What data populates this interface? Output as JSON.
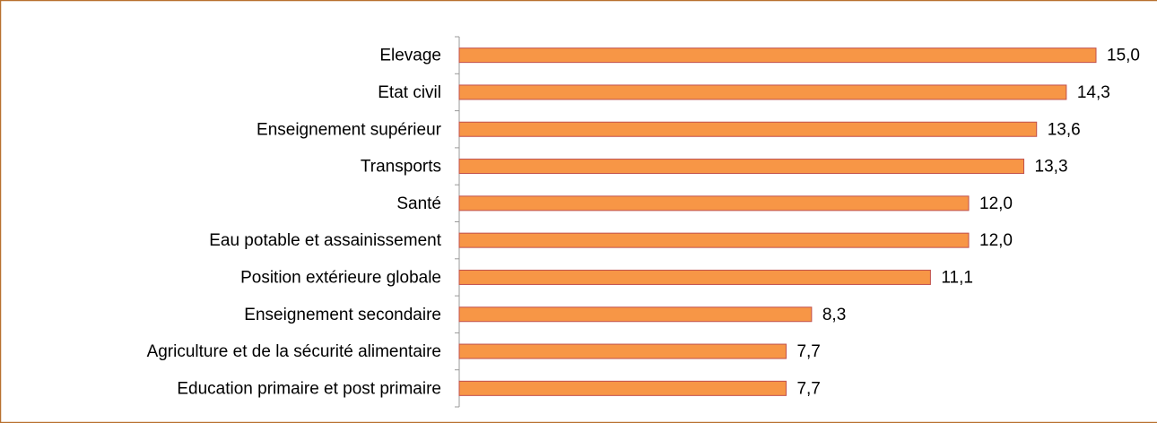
{
  "chart_data": {
    "type": "barh",
    "categories": [
      "Elevage",
      "Etat civil",
      "Enseignement supérieur",
      "Transports",
      "Santé",
      "Eau potable et assainissement",
      "Position extérieure globale",
      "Enseignement secondaire",
      "Agriculture et de la sécurité alimentaire",
      "Education primaire et post primaire"
    ],
    "values": [
      15.0,
      14.3,
      13.6,
      13.3,
      12.0,
      12.0,
      11.1,
      8.3,
      7.7,
      7.7
    ],
    "value_labels": [
      "15,0",
      "14,3",
      "13,6",
      "13,3",
      "12,0",
      "12,0",
      "11,1",
      "8,3",
      "7,7",
      "7,7"
    ],
    "color": "#f79646"
  }
}
